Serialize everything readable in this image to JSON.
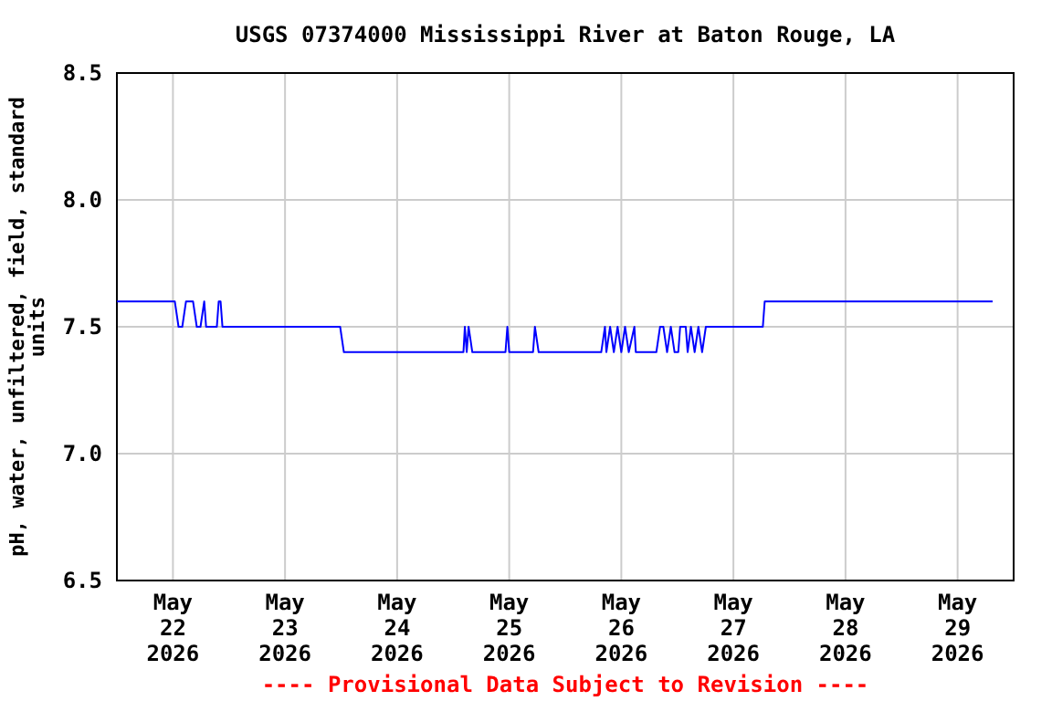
{
  "chart_data": {
    "type": "line",
    "title": "USGS 07374000 Mississippi River at Baton Rouge, LA",
    "ylabel": "pH, water, unfiltered, field, standard units",
    "annotations": [
      "---- Provisional Data Subject to Revision ----"
    ],
    "xlim": [
      "2026-05-21T12:00",
      "2026-05-29T12:00"
    ],
    "xticks": [
      {
        "value": "2026-05-22",
        "label": "May\n22\n2026"
      },
      {
        "value": "2026-05-23",
        "label": "May\n23\n2026"
      },
      {
        "value": "2026-05-24",
        "label": "May\n24\n2026"
      },
      {
        "value": "2026-05-25",
        "label": "May\n25\n2026"
      },
      {
        "value": "2026-05-26",
        "label": "May\n26\n2026"
      },
      {
        "value": "2026-05-27",
        "label": "May\n27\n2026"
      },
      {
        "value": "2026-05-28",
        "label": "May\n28\n2026"
      },
      {
        "value": "2026-05-29",
        "label": "May\n29\n2026"
      }
    ],
    "ylim": [
      6.5,
      8.5
    ],
    "yticks": [
      {
        "value": 6.5,
        "label": "6.5"
      },
      {
        "value": 7,
        "label": "7.0"
      },
      {
        "value": 7.5,
        "label": "7.5"
      },
      {
        "value": 8,
        "label": "8.0"
      },
      {
        "value": 8.5,
        "label": "8.5"
      }
    ],
    "grid": true,
    "series": [
      {
        "color": "#0000ff",
        "x": [
          "2026-05-21T12:00",
          "2026-05-22T00:24",
          "2026-05-22T01:12",
          "2026-05-22T02:00",
          "2026-05-22T02:48",
          "2026-05-22T04:18",
          "2026-05-22T05:06",
          "2026-05-22T05:54",
          "2026-05-22T06:42",
          "2026-05-22T07:06",
          "2026-05-22T09:24",
          "2026-05-22T09:48",
          "2026-05-22T10:12",
          "2026-05-22T10:36",
          "2026-05-23T11:48",
          "2026-05-23T12:36",
          "2026-05-24T14:12",
          "2026-05-24T14:30",
          "2026-05-24T14:54",
          "2026-05-24T15:18",
          "2026-05-24T16:06",
          "2026-05-24T23:12",
          "2026-05-24T23:36",
          "2026-05-25T00:00",
          "2026-05-25T05:06",
          "2026-05-25T05:30",
          "2026-05-25T06:18",
          "2026-05-25T19:42",
          "2026-05-25T20:30",
          "2026-05-25T20:48",
          "2026-05-25T21:36",
          "2026-05-25T22:24",
          "2026-05-25T23:12",
          "2026-05-26T00:00",
          "2026-05-26T00:48",
          "2026-05-26T01:36",
          "2026-05-26T02:48",
          "2026-05-26T03:06",
          "2026-05-26T07:30",
          "2026-05-26T08:18",
          "2026-05-26T09:00",
          "2026-05-26T09:48",
          "2026-05-26T10:36",
          "2026-05-26T11:24",
          "2026-05-26T12:12",
          "2026-05-26T12:36",
          "2026-05-26T13:48",
          "2026-05-26T14:12",
          "2026-05-26T14:54",
          "2026-05-26T15:42",
          "2026-05-26T16:30",
          "2026-05-26T17:18",
          "2026-05-26T18:06",
          "2026-05-27T06:18",
          "2026-05-27T06:42",
          "2026-05-29T07:30"
        ],
        "values": [
          7.6,
          7.6,
          7.5,
          7.5,
          7.6,
          7.6,
          7.5,
          7.5,
          7.6,
          7.5,
          7.5,
          7.6,
          7.6,
          7.5,
          7.5,
          7.4,
          7.4,
          7.5,
          7.4,
          7.5,
          7.4,
          7.4,
          7.5,
          7.4,
          7.4,
          7.5,
          7.4,
          7.4,
          7.5,
          7.4,
          7.5,
          7.4,
          7.5,
          7.4,
          7.5,
          7.4,
          7.5,
          7.4,
          7.4,
          7.5,
          7.5,
          7.4,
          7.5,
          7.4,
          7.4,
          7.5,
          7.5,
          7.4,
          7.5,
          7.4,
          7.5,
          7.4,
          7.5,
          7.5,
          7.6,
          7.6
        ]
      }
    ]
  }
}
